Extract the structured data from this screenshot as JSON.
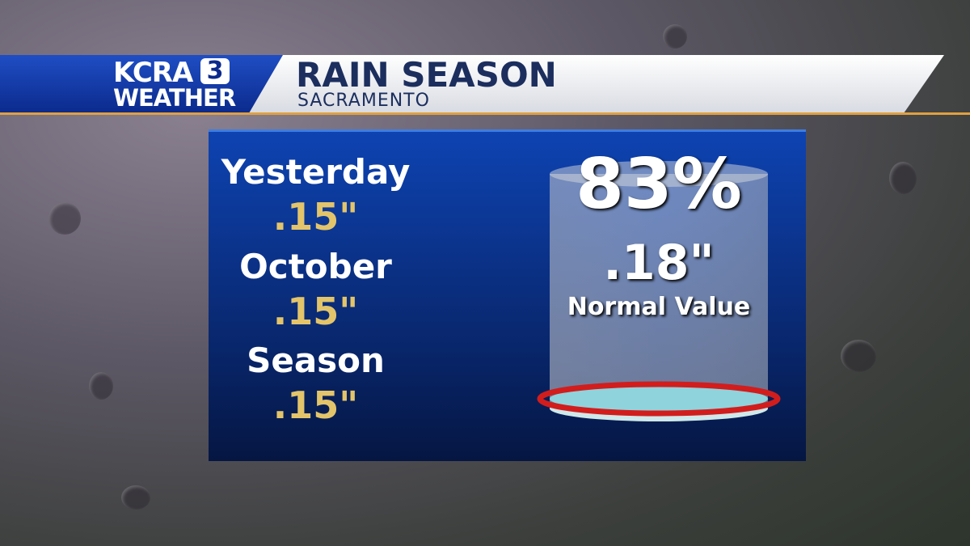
{
  "header": {
    "logo": {
      "name": "KCRA",
      "number": "3",
      "label": "WEATHER"
    },
    "title": "RAIN SEASON",
    "subtitle": "SACRAMENTO"
  },
  "stats": [
    {
      "label": "Yesterday",
      "value": ".15\""
    },
    {
      "label": "October",
      "value": ".15\""
    },
    {
      "label": "Season",
      "value": ".15\""
    }
  ],
  "gauge": {
    "percent": "83%",
    "value": ".18\"",
    "label": "Normal Value"
  }
}
